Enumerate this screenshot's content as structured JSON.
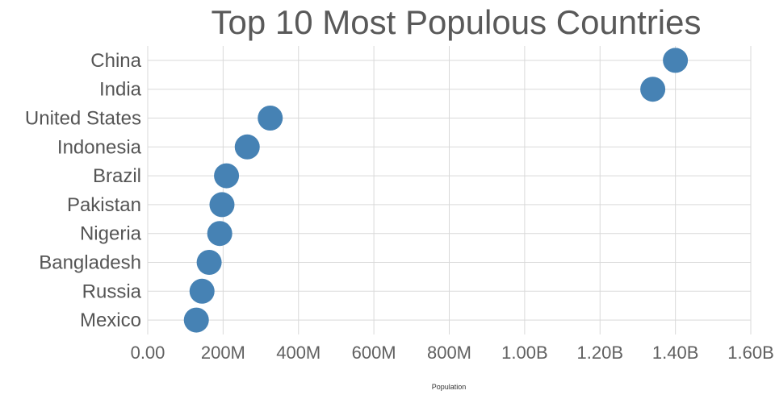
{
  "chart_data": {
    "type": "scatter",
    "title": "Top 10 Most Populous Countries",
    "xlabel": "Population",
    "categories": [
      "China",
      "India",
      "United States",
      "Indonesia",
      "Brazil",
      "Pakistan",
      "Nigeria",
      "Bangladesh",
      "Russia",
      "Mexico"
    ],
    "values_millions": [
      1400,
      1340,
      325,
      264,
      209,
      197,
      191,
      163,
      144,
      129
    ],
    "xlim_millions": [
      0,
      1600
    ],
    "xticks": [
      {
        "value": 0,
        "label": "0.00"
      },
      {
        "value": 200,
        "label": "200M"
      },
      {
        "value": 400,
        "label": "400M"
      },
      {
        "value": 600,
        "label": "600M"
      },
      {
        "value": 800,
        "label": "800M"
      },
      {
        "value": 1000,
        "label": "1.00B"
      },
      {
        "value": 1200,
        "label": "1.20B"
      },
      {
        "value": 1400,
        "label": "1.40B"
      },
      {
        "value": 1600,
        "label": "1.60B"
      }
    ],
    "grid": true,
    "legend": "none",
    "dot_color": "#4682b4",
    "background_color": "#ffffff",
    "gridline_color": "#d9d9d9"
  }
}
